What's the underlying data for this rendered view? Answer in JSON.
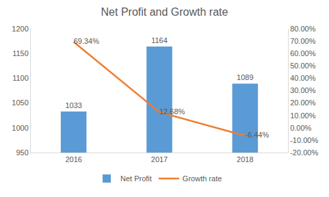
{
  "chart_data": {
    "type": "bar",
    "title": "Net Profit and Growth rate",
    "categories": [
      "2016",
      "2017",
      "2018"
    ],
    "series": [
      {
        "name": "Net Profit",
        "type": "bar",
        "color": "#5b9bd5",
        "values": [
          1033,
          1164,
          1089
        ]
      },
      {
        "name": "Growth rate",
        "type": "line",
        "axis": "y2",
        "color": "#ed7d31",
        "values": [
          69.34,
          12.68,
          -6.44
        ],
        "value_labels": [
          "69.34%",
          "12.68%",
          "-6.44%"
        ]
      }
    ],
    "ylim": [
      950,
      1200
    ],
    "yticks": [
      950,
      1000,
      1050,
      1100,
      1150,
      1200
    ],
    "y2lim": [
      -20,
      80
    ],
    "y2ticks": [
      {
        "value": -20,
        "label": "-20.00%"
      },
      {
        "value": -10,
        "label": "-10.00%"
      },
      {
        "value": 0,
        "label": "0.00%"
      },
      {
        "value": 10,
        "label": "10.00%"
      },
      {
        "value": 20,
        "label": "20.00%"
      },
      {
        "value": 30,
        "label": "30.00%"
      },
      {
        "value": 40,
        "label": "40.00%"
      },
      {
        "value": 50,
        "label": "50.00%"
      },
      {
        "value": 60,
        "label": "60.00%"
      },
      {
        "value": 70,
        "label": "70.00%"
      },
      {
        "value": 80,
        "label": "80.00%"
      }
    ],
    "data_labels": true,
    "legend": "bottom",
    "grid": false
  }
}
